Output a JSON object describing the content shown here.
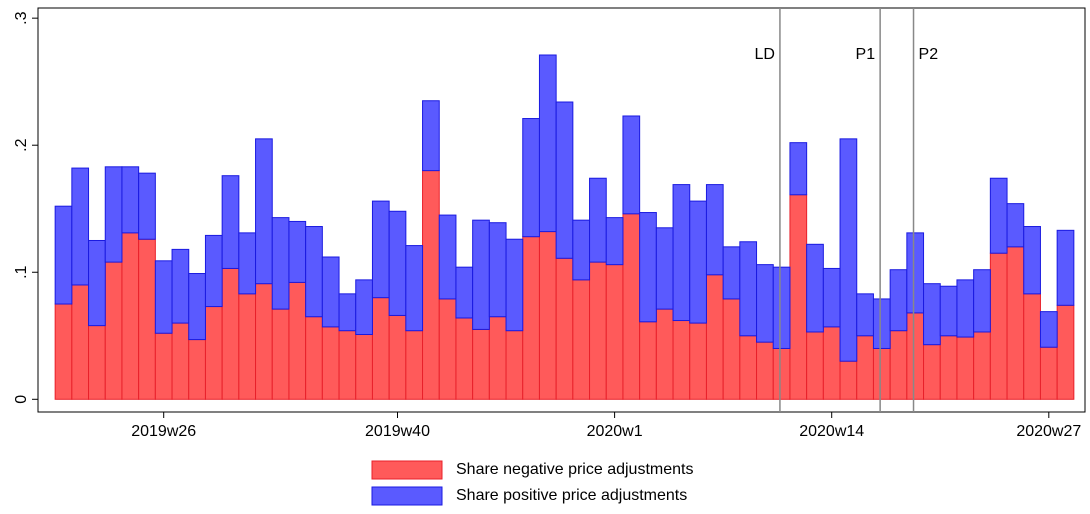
{
  "chart_data": {
    "type": "stacked-bar",
    "categories": [
      null,
      null,
      null,
      null,
      null,
      null,
      "2019w26",
      null,
      null,
      null,
      null,
      null,
      null,
      null,
      null,
      null,
      null,
      null,
      null,
      null,
      "2019w40",
      null,
      null,
      null,
      null,
      null,
      null,
      null,
      null,
      null,
      null,
      null,
      null,
      "2020w1",
      null,
      null,
      null,
      null,
      null,
      null,
      null,
      null,
      null,
      null,
      null,
      null,
      "2020w14",
      null,
      null,
      null,
      null,
      null,
      null,
      null,
      null,
      null,
      null,
      null,
      null,
      "2020w27",
      null
    ],
    "series": [
      {
        "name": "Share negative price adjustments",
        "color": "#ff5a5a",
        "edge": "#e8202a",
        "values": [
          0.075,
          0.09,
          0.058,
          0.108,
          0.131,
          0.126,
          0.052,
          0.06,
          0.047,
          0.073,
          0.103,
          0.083,
          0.091,
          0.071,
          0.092,
          0.065,
          0.057,
          0.054,
          0.051,
          0.08,
          0.066,
          0.054,
          0.18,
          0.079,
          0.064,
          0.055,
          0.065,
          0.054,
          0.128,
          0.132,
          0.111,
          0.094,
          0.108,
          0.106,
          0.146,
          0.061,
          0.071,
          0.062,
          0.06,
          0.098,
          0.079,
          0.05,
          0.045,
          0.04,
          0.161,
          0.053,
          0.057,
          0.03,
          0.05,
          0.04,
          0.054,
          0.068,
          0.043,
          0.05,
          0.049,
          0.053,
          0.115,
          0.12,
          0.083,
          0.041,
          0.074
        ]
      },
      {
        "name": "Share positive price adjustments",
        "color": "#5a5aff",
        "edge": "#1a1ae0",
        "values": [
          0.077,
          0.092,
          0.067,
          0.075,
          0.052,
          0.052,
          0.057,
          0.058,
          0.052,
          0.056,
          0.073,
          0.048,
          0.114,
          0.072,
          0.048,
          0.071,
          0.055,
          0.029,
          0.043,
          0.076,
          0.082,
          0.067,
          0.055,
          0.066,
          0.04,
          0.086,
          0.074,
          0.072,
          0.093,
          0.139,
          0.123,
          0.047,
          0.066,
          0.037,
          0.077,
          0.086,
          0.064,
          0.107,
          0.096,
          0.071,
          0.041,
          0.074,
          0.061,
          0.064,
          0.041,
          0.069,
          0.046,
          0.175,
          0.033,
          0.039,
          0.048,
          0.063,
          0.048,
          0.039,
          0.045,
          0.049,
          0.059,
          0.034,
          0.053,
          0.028,
          0.059
        ]
      }
    ],
    "ylim": [
      -0.01,
      0.308
    ],
    "yticks": [
      {
        "value": 0,
        "label": "0"
      },
      {
        "value": 0.1,
        "label": ".1"
      },
      {
        "value": 0.2,
        "label": ".2"
      },
      {
        "value": 0.3,
        "label": ".3"
      }
    ],
    "annotations": [
      {
        "label": "LD",
        "x": 42.9,
        "anchor": "end"
      },
      {
        "label": "P1",
        "x": 48.9,
        "anchor": "end"
      },
      {
        "label": "P2",
        "x": 50.9,
        "anchor": "start"
      }
    ]
  }
}
